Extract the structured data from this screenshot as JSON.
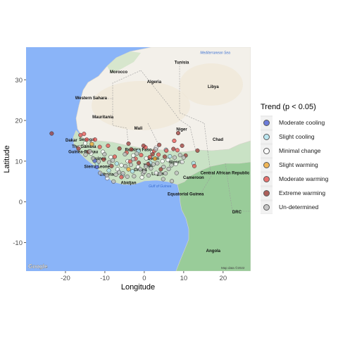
{
  "chart_data": {
    "type": "scatter",
    "xlabel": "Longitude",
    "ylabel": "Latitude",
    "xlim": [
      -30,
      27
    ],
    "ylim": [
      -17,
      38
    ],
    "x_ticks": [
      -20,
      -10,
      0,
      10,
      20
    ],
    "y_ticks": [
      -10,
      0,
      10,
      20,
      30
    ],
    "legend_title": "Trend (p < 0.05)",
    "legend_position": "right",
    "map_attribution": "Google",
    "map_copyright": "Map data ©2022",
    "categories": [
      {
        "name": "Moderate cooling",
        "color": "#4b5fd6"
      },
      {
        "name": "Slight cooling",
        "color": "#aee4f0"
      },
      {
        "name": "Minimal change",
        "color": "#ffffff"
      },
      {
        "name": "Slight warming",
        "color": "#f0a830"
      },
      {
        "name": "Moderate warming",
        "color": "#e8534f"
      },
      {
        "name": "Extreme warming",
        "color": "#9e3b35"
      },
      {
        "name": "Un-determined",
        "color": "#bdbdbd"
      }
    ],
    "labels": {
      "countries": [
        {
          "name": "Tunisia",
          "lon": 9.5,
          "lat": 33.9
        },
        {
          "name": "Morocco",
          "lon": -6.5,
          "lat": 31.6
        },
        {
          "name": "Algeria",
          "lon": 2.5,
          "lat": 29.2
        },
        {
          "name": "Libya",
          "lon": 17.5,
          "lat": 28.0
        },
        {
          "name": "Western Sahara",
          "lon": -13.5,
          "lat": 25.2
        },
        {
          "name": "Mauritania",
          "lon": -10.5,
          "lat": 20.5
        },
        {
          "name": "Mali",
          "lon": -1.5,
          "lat": 17.8
        },
        {
          "name": "Niger",
          "lon": 9.5,
          "lat": 17.5
        },
        {
          "name": "Chad",
          "lon": 18.7,
          "lat": 15.0
        },
        {
          "name": "Senegal",
          "lon": -14.5,
          "lat": 15.0
        },
        {
          "name": "Dakar",
          "lon": -18.5,
          "lat": 14.8
        },
        {
          "name": "The Gambia",
          "lon": -15.3,
          "lat": 13.3
        },
        {
          "name": "Guinea-Bissau",
          "lon": -15.5,
          "lat": 12.0
        },
        {
          "name": "Guinea",
          "lon": -11.5,
          "lat": 10.3
        },
        {
          "name": "Burkina Faso",
          "lon": -1.5,
          "lat": 12.5
        },
        {
          "name": "Benin",
          "lon": 2.3,
          "lat": 10.3
        },
        {
          "name": "Nigeria",
          "lon": 8.0,
          "lat": 9.5
        },
        {
          "name": "Sierra Leone",
          "lon": -12.0,
          "lat": 8.3
        },
        {
          "name": "Ghana",
          "lon": -1.0,
          "lat": 7.6
        },
        {
          "name": "Togo",
          "lon": 1.0,
          "lat": 8.6
        },
        {
          "name": "Liberia",
          "lon": -9.5,
          "lat": 6.4
        },
        {
          "name": "Abidjan",
          "lon": -4.0,
          "lat": 4.4
        },
        {
          "name": "Lagos",
          "lon": 3.4,
          "lat": 6.6
        },
        {
          "name": "Cameroon",
          "lon": 12.5,
          "lat": 5.7
        },
        {
          "name": "Central African Republic",
          "lon": 20.5,
          "lat": 6.8
        },
        {
          "name": "Equatorial Guinea",
          "lon": 10.5,
          "lat": 1.6
        },
        {
          "name": "DRC",
          "lon": 23.5,
          "lat": -2.8
        },
        {
          "name": "Angola",
          "lon": 17.5,
          "lat": -12.3
        }
      ],
      "water": [
        {
          "name": "Mediterranean Sea",
          "lon": 18.0,
          "lat": 36.4
        },
        {
          "name": "Gulf of Guinea",
          "lon": 4.0,
          "lat": 3.6
        }
      ]
    },
    "series": [
      {
        "name": "Moderate cooling",
        "x": [
          -12.6,
          -12.0
        ],
        "y": [
          10.1,
          8.6
        ]
      },
      {
        "name": "Slight cooling",
        "x": [
          -12.0,
          -9.0,
          -7.0,
          -5.5,
          -3.0,
          -1.5,
          1.5,
          5.5,
          6.5,
          12.5
        ],
        "y": [
          9.4,
          7.7,
          9.4,
          6.5,
          7.5,
          12.5,
          9.6,
          12.8,
          11.2,
          9.5
        ]
      },
      {
        "name": "Minimal change",
        "x": [
          -16.5,
          -15.0,
          -13.5,
          -10.5,
          -8.5,
          -6.8,
          -5.8,
          -4.2,
          -2.8,
          -1.6,
          -0.6,
          0.5,
          2.0,
          3.0,
          4.6,
          6.0,
          8.0,
          9.6,
          -9.4,
          3.0
        ],
        "y": [
          13.4,
          14.4,
          11.9,
          12.3,
          11.0,
          8.0,
          9.0,
          10.0,
          11.4,
          8.6,
          6.0,
          10.7,
          12.2,
          7.1,
          10.0,
          10.3,
          9.3,
          9.8,
          5.8,
          13.3
        ]
      },
      {
        "name": "Slight warming",
        "x": [
          -13.3,
          -4.0,
          2.7
        ],
        "y": [
          14.2,
          8.0,
          10.6
        ]
      },
      {
        "name": "Moderate warming",
        "x": [
          -16.2,
          -15.3,
          -14.6,
          -12.5,
          -11.3,
          -9.2,
          -7.5,
          -4.5,
          -3.6,
          -2.2,
          -0.8,
          0.3,
          1.4,
          2.5,
          3.6,
          5.6,
          7.6,
          8.4,
          12.7,
          -5.8
        ],
        "y": [
          16.4,
          16.7,
          15.3,
          15.3,
          13.5,
          13.8,
          11.1,
          12.1,
          9.9,
          10.6,
          11.5,
          13.4,
          11.0,
          12.5,
          11.6,
          12.6,
          15.0,
          12.7,
          8.8,
          6.1
        ]
      },
      {
        "name": "Extreme warming",
        "x": [
          -23.5,
          -16.7,
          -14.1,
          -10.3,
          -8.3,
          -6.3,
          -4.0,
          -3.3,
          -1.4,
          -0.2,
          1.0,
          2.1,
          3.8,
          5.2,
          7.4,
          8.6,
          9.6,
          10.5,
          13.5,
          4.2
        ],
        "y": [
          16.8,
          13.1,
          12.3,
          10.4,
          8.8,
          13.1,
          14.3,
          12.9,
          9.6,
          13.8,
          9.3,
          11.7,
          14.0,
          11.1,
          13.0,
          16.9,
          13.8,
          11.4,
          12.6,
          8.0
        ]
      },
      {
        "name": "Un-determined",
        "x": [
          -14.9,
          -13.0,
          -11.6,
          -10.1,
          -8.9,
          -8.0,
          -7.2,
          -6.4,
          -5.4,
          -4.9,
          -4.3,
          -3.4,
          -2.6,
          -1.9,
          -1.0,
          -0.3,
          0.4,
          1.1,
          1.7,
          2.3,
          3.3,
          4.0,
          4.9,
          5.4,
          6.2,
          7.0,
          7.7,
          8.2,
          9.1,
          10.0,
          -7.8,
          -2.8,
          2.9,
          6.9,
          -11.2,
          -13.8,
          -9.5,
          -4.8,
          0.0,
          4.8
        ],
        "y": [
          11.6,
          10.7,
          9.9,
          11.7,
          9.7,
          10.2,
          6.7,
          7.3,
          7.0,
          11.7,
          6.2,
          9.1,
          6.3,
          11.9,
          8.0,
          7.0,
          8.7,
          6.5,
          8.2,
          9.2,
          9.5,
          6.9,
          8.6,
          7.0,
          8.1,
          5.1,
          10.9,
          7.1,
          11.5,
          10.9,
          5.0,
          10.5,
          12.9,
          9.0,
          7.1,
          12.4,
          6.5,
          8.8,
          7.4,
          5.6
        ]
      }
    ]
  }
}
